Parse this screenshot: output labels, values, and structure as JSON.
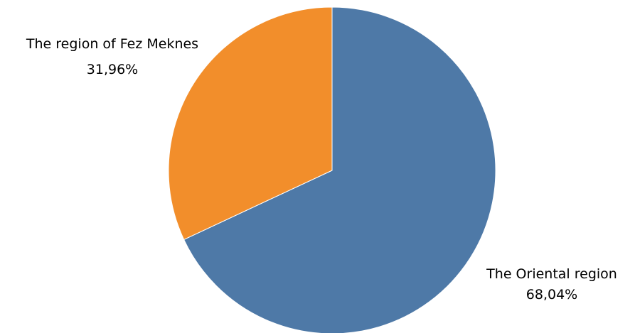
{
  "chart_data": {
    "type": "pie",
    "title": "",
    "start_angle_deg": 0,
    "direction": "clockwise",
    "slices": [
      {
        "label": "The Oriental region",
        "value": 68.04,
        "value_label": "68,04%",
        "color": "#4e79a7"
      },
      {
        "label": "The region of Fez Meknes",
        "value": 31.96,
        "value_label": "31,96%",
        "color": "#f28e2b"
      }
    ],
    "legend": "none",
    "label_style": "outside"
  }
}
